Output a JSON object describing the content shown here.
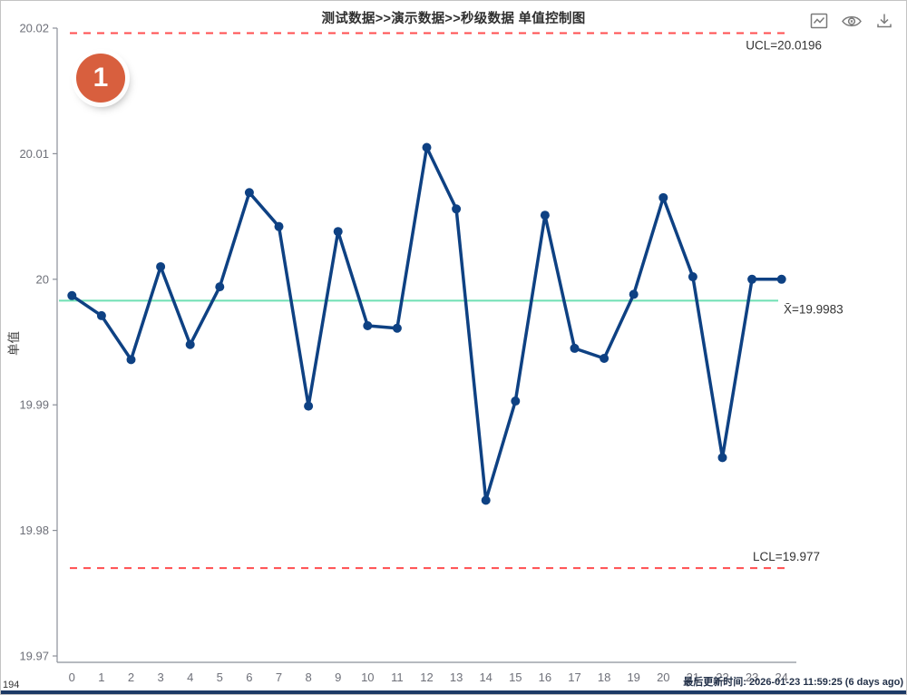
{
  "window": {
    "bottom_left_text": "194",
    "last_update_text": "最后更新时间: 2026-01-23 11:59:25 (6 days ago)"
  },
  "badge": {
    "label": "1",
    "color": "#d85f3e"
  },
  "toolbox": {
    "icons": [
      "line-chart-icon",
      "eye-icon",
      "download-icon"
    ]
  },
  "colors": {
    "bottom_bar": "#1d3a66",
    "window_border": "#c3c3c3"
  },
  "chart_data": {
    "type": "line",
    "title": "测试数据>>演示数据>>秒级数据 单值控制图",
    "ylabel": "单值",
    "xlabel": "",
    "categories": [
      "0",
      "1",
      "2",
      "3",
      "4",
      "5",
      "6",
      "7",
      "8",
      "9",
      "10",
      "11",
      "12",
      "13",
      "14",
      "15",
      "16",
      "17",
      "18",
      "19",
      "20",
      "21",
      "22",
      "23",
      "24"
    ],
    "values": [
      19.9987,
      19.9971,
      19.9936,
      20.001,
      19.9948,
      19.9994,
      20.0069,
      20.0042,
      19.9899,
      20.0038,
      19.9963,
      19.9961,
      20.0105,
      20.0056,
      19.9824,
      19.9903,
      20.0051,
      19.9945,
      19.9937,
      19.9988,
      20.0065,
      20.0002,
      19.9858,
      20.0,
      20.0
    ],
    "ylim": [
      19.97,
      20.02
    ],
    "y_tick_values": [
      20.02,
      20.01,
      20.0,
      19.99,
      19.98,
      19.97
    ],
    "y_tick_labels": [
      "20.02",
      "20.01",
      "20",
      "19.99",
      "19.98",
      "19.97"
    ],
    "grid": false,
    "legend": null,
    "series_color": "#0e4183",
    "axis_color": "#8b9099",
    "tick_label_color": "#6E7079",
    "label_color": "#333333",
    "center_line": {
      "value": 19.9983,
      "label": "X̄=19.9983",
      "color": "#6fe0b4"
    },
    "ucl": {
      "value": 20.0196,
      "label": "UCL=20.0196",
      "color": "#ff4d4f"
    },
    "lcl": {
      "value": 19.977,
      "label": "LCL=19.977",
      "color": "#ff4d4f"
    }
  }
}
